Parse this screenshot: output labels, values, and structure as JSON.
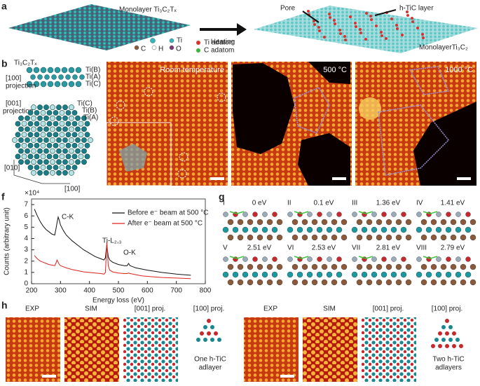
{
  "panel_labels": [
    "a",
    "b",
    "c",
    "d",
    "e",
    "f",
    "g",
    "h"
  ],
  "a": {
    "left_title": "Monolayer Ti₃C₂Tₓ",
    "arrow": "Heating",
    "pore": "Pore",
    "layer": "h-TiC layer",
    "right_title": "MonolayerTi₃C₂",
    "legend": [
      "C",
      "H",
      "Ti",
      "O",
      "Ti adatom",
      "C adatom"
    ]
  },
  "b": {
    "formula": "Ti₃C₂Tₓ",
    "side_labels": [
      "Ti(B)",
      "Ti(A)",
      "Ti(C)"
    ],
    "side_projection": [
      "[100]",
      "projection"
    ],
    "top_projection": [
      "[001]",
      "projection"
    ],
    "top_labels": [
      "Ti(C)",
      "Ti(B)",
      "Ti(A)"
    ],
    "axes": [
      "[010]",
      "[100]"
    ]
  },
  "c": {
    "label": "Room temperature"
  },
  "d": {
    "label": "500 °C"
  },
  "e": {
    "label": "1000 °C"
  },
  "f": {
    "chart_data": {
      "type": "line",
      "xlabel": "Energy loss (eV)",
      "ylabel": "Counts (arbitrary unit)",
      "y_multiplier": "×10⁴",
      "annotations": [
        "C-K",
        "Ti-L₂,₃",
        "O-K"
      ],
      "x": [
        210,
        220,
        230,
        240,
        250,
        260,
        270,
        280,
        284,
        288,
        292,
        296,
        300,
        310,
        320,
        340,
        360,
        380,
        400,
        420,
        440,
        450,
        455,
        458,
        460,
        462,
        465,
        470,
        480,
        500,
        520,
        530,
        535,
        540,
        550,
        560,
        580,
        600,
        650,
        700,
        750
      ],
      "series": [
        {
          "name": "Before e⁻ beam at 500 °C",
          "color": "#111111",
          "values": [
            6.6,
            6.0,
            5.5,
            5.1,
            4.8,
            4.6,
            4.4,
            4.3,
            4.8,
            5.4,
            5.9,
            5.6,
            5.2,
            4.7,
            4.3,
            3.8,
            3.4,
            3.0,
            2.7,
            2.4,
            2.2,
            2.1,
            2.3,
            3.0,
            3.5,
            3.0,
            2.4,
            2.1,
            1.9,
            1.7,
            1.6,
            1.6,
            1.8,
            1.6,
            1.5,
            1.4,
            1.3,
            1.2,
            1.0,
            0.85,
            0.75
          ]
        },
        {
          "name": "After e⁻ beam at 500 °C",
          "color": "#e0201b",
          "values": [
            2.5,
            2.2,
            2.0,
            1.9,
            1.8,
            1.7,
            1.65,
            1.6,
            1.8,
            2.1,
            1.9,
            1.7,
            1.6,
            1.5,
            1.4,
            1.25,
            1.15,
            1.05,
            1.0,
            0.95,
            0.9,
            0.85,
            1.0,
            2.5,
            3.7,
            2.8,
            1.6,
            1.2,
            1.05,
            0.95,
            0.9,
            0.9,
            0.95,
            0.9,
            0.85,
            0.8,
            0.7,
            0.65,
            0.55,
            0.5,
            0.45
          ]
        }
      ],
      "xlim": [
        200,
        800
      ],
      "xticks": [
        200,
        300,
        400,
        500,
        600,
        700,
        800
      ],
      "ylim": [
        0,
        7.5
      ],
      "yticks": [
        0,
        1,
        2,
        3,
        4,
        5,
        6,
        7
      ],
      "legend": "upper right"
    }
  },
  "g": {
    "configs": [
      {
        "id": "I",
        "energy": "0 eV"
      },
      {
        "id": "II",
        "energy": "0.1 eV"
      },
      {
        "id": "III",
        "energy": "1.36 eV"
      },
      {
        "id": "IV",
        "energy": "1.41 eV"
      },
      {
        "id": "V",
        "energy": "2.51 eV"
      },
      {
        "id": "VI",
        "energy": "2.53 eV"
      },
      {
        "id": "VII",
        "energy": "2.81 eV"
      },
      {
        "id": "VIII",
        "energy": "2.79 eV"
      }
    ]
  },
  "h": {
    "sets": [
      {
        "headers": [
          "EXP",
          "SIM",
          "[001] proj.",
          "[100] proj."
        ],
        "caption": [
          "One h-TiC",
          "adlayer"
        ]
      },
      {
        "headers": [
          "EXP",
          "SIM",
          "[001] proj.",
          "[100] proj."
        ],
        "caption": [
          "Two h-TiC",
          "adlayers"
        ]
      }
    ]
  }
}
